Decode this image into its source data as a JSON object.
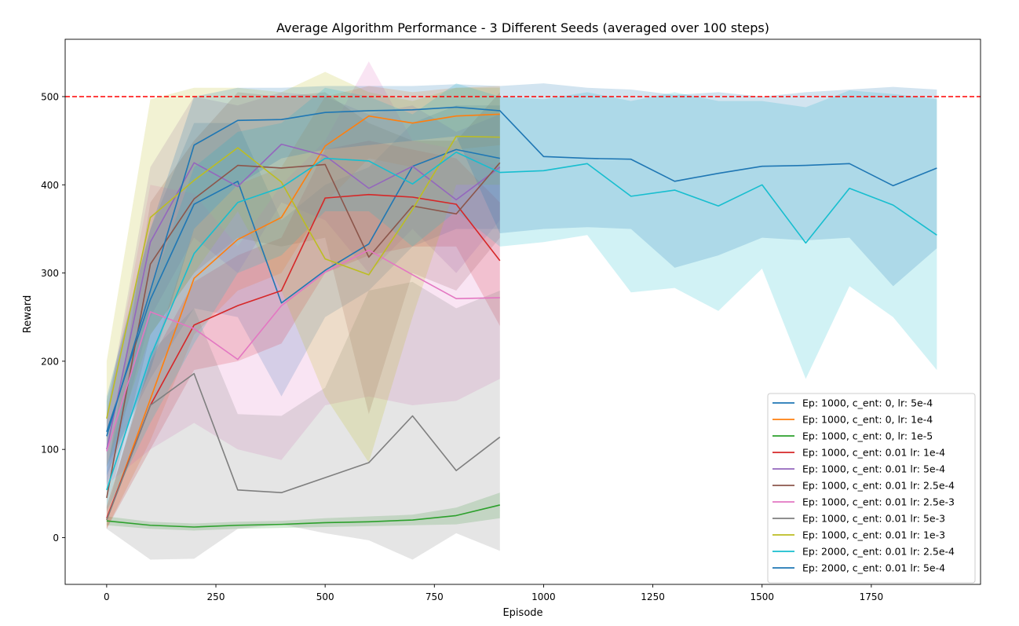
{
  "chart_data": {
    "type": "line",
    "title": "Average Algorithm Performance - 3 Different Seeds (averaged over 100 steps)",
    "xlabel": "Episode",
    "ylabel": "Reward",
    "xlim": [
      -95,
      2000
    ],
    "ylim": [
      -53,
      565
    ],
    "xticks": [
      0,
      250,
      500,
      750,
      1000,
      1250,
      1500,
      1750
    ],
    "yticks": [
      0,
      100,
      200,
      300,
      400,
      500
    ],
    "grid": false,
    "legend_position": "lower right",
    "reference_line": {
      "y": 500,
      "color": "#ff0000",
      "style": "dashed"
    },
    "series": [
      {
        "name": "Ep: 1000, c_ent: 0, lr: 5e-4",
        "color": "#1f77b4",
        "x": [
          0,
          100,
          200,
          300,
          400,
          500,
          600,
          700,
          800,
          900
        ],
        "y": [
          120,
          270,
          378,
          404,
          266,
          303,
          333,
          421,
          440,
          430
        ],
        "lower": [
          80,
          180,
          260,
          250,
          160,
          250,
          280,
          330,
          350,
          350
        ],
        "upper": [
          155,
          350,
          470,
          470,
          360,
          400,
          420,
          470,
          490,
          490
        ]
      },
      {
        "name": "Ep: 1000, c_ent: 0, lr: 1e-4",
        "color": "#ff7f0e",
        "x": [
          0,
          100,
          200,
          300,
          400,
          500,
          600,
          700,
          800,
          900
        ],
        "y": [
          20,
          157,
          294,
          338,
          363,
          444,
          478,
          470,
          478,
          480
        ],
        "lower": [
          10,
          110,
          230,
          280,
          300,
          380,
          430,
          420,
          440,
          445
        ],
        "upper": [
          35,
          200,
          350,
          400,
          420,
          500,
          512,
          505,
          510,
          512
        ]
      },
      {
        "name": "Ep: 1000, c_ent: 0, lr: 1e-5",
        "color": "#2ca02c",
        "x": [
          0,
          100,
          200,
          300,
          400,
          500,
          600,
          700,
          800,
          900
        ],
        "y": [
          19,
          14,
          12,
          14,
          15,
          17,
          18,
          20,
          25,
          37
        ],
        "lower": [
          14,
          10,
          8,
          10,
          11,
          12,
          13,
          14,
          15,
          22
        ],
        "upper": [
          24,
          18,
          16,
          18,
          19,
          22,
          24,
          26,
          34,
          51
        ]
      },
      {
        "name": "Ep: 1000, c_ent: 0.01 lr: 1e-4",
        "color": "#d62728",
        "x": [
          0,
          100,
          200,
          300,
          400,
          500,
          600,
          700,
          800,
          900
        ],
        "y": [
          22,
          150,
          241,
          263,
          280,
          385,
          389,
          386,
          378,
          314
        ],
        "lower": [
          10,
          100,
          190,
          200,
          220,
          300,
          320,
          330,
          330,
          240
        ],
        "upper": [
          35,
          200,
          290,
          320,
          340,
          440,
          450,
          440,
          430,
          380
        ]
      },
      {
        "name": "Ep: 1000, c_ent: 0.01 lr: 5e-4",
        "color": "#9467bd",
        "x": [
          0,
          100,
          200,
          300,
          400,
          500,
          600,
          700,
          800,
          900
        ],
        "y": [
          100,
          335,
          425,
          398,
          446,
          433,
          396,
          421,
          383,
          420
        ],
        "lower": [
          60,
          250,
          340,
          300,
          380,
          360,
          300,
          350,
          300,
          360
        ],
        "upper": [
          140,
          420,
          500,
          490,
          505,
          500,
          480,
          490,
          460,
          480
        ]
      },
      {
        "name": "Ep: 1000, c_ent: 0.01 lr: 2.5e-4",
        "color": "#8c564b",
        "x": [
          0,
          100,
          200,
          300,
          400,
          500,
          600,
          700,
          800,
          900
        ],
        "y": [
          45,
          310,
          384,
          422,
          419,
          423,
          318,
          376,
          367,
          425
        ],
        "lower": [
          30,
          230,
          300,
          340,
          330,
          340,
          140,
          300,
          280,
          340
        ],
        "upper": [
          70,
          380,
          450,
          505,
          500,
          505,
          470,
          450,
          450,
          505
        ]
      },
      {
        "name": "Ep: 1000, c_ent: 0.01 lr: 2.5e-3",
        "color": "#e377c2",
        "x": [
          0,
          100,
          200,
          300,
          400,
          500,
          600,
          700,
          800,
          900
        ],
        "y": [
          98,
          256,
          237,
          202,
          263,
          301,
          326,
          298,
          271,
          272
        ],
        "lower": [
          60,
          100,
          130,
          100,
          88,
          150,
          160,
          150,
          155,
          180
        ],
        "upper": [
          140,
          400,
          390,
          330,
          400,
          450,
          540,
          450,
          440,
          420
        ]
      },
      {
        "name": "Ep: 1000, c_ent: 0.01 lr: 5e-3",
        "color": "#7f7f7f",
        "x": [
          0,
          100,
          200,
          300,
          400,
          500,
          600,
          700,
          800,
          900
        ],
        "y": [
          20,
          150,
          186,
          54,
          51,
          68,
          85,
          138,
          76,
          114
        ],
        "lower": [
          10,
          -25,
          -24,
          10,
          15,
          5,
          -3,
          -25,
          5,
          -15
        ],
        "upper": [
          30,
          210,
          260,
          140,
          138,
          170,
          280,
          290,
          260,
          280
        ]
      },
      {
        "name": "Ep: 1000, c_ent: 0.01 lr: 1e-3",
        "color": "#bcbd22",
        "x": [
          0,
          100,
          200,
          300,
          400,
          500,
          600,
          700,
          800,
          900
        ],
        "y": [
          135,
          363,
          405,
          442,
          403,
          316,
          298,
          372,
          455,
          454
        ],
        "lower": [
          80,
          230,
          300,
          370,
          280,
          160,
          85,
          250,
          400,
          400
        ],
        "upper": [
          200,
          497,
          510,
          510,
          505,
          528,
          505,
          495,
          510,
          510
        ]
      },
      {
        "name": "Ep: 2000, c_ent: 0.01 lr: 2.5e-4",
        "color": "#17becf",
        "x": [
          0,
          100,
          200,
          300,
          400,
          500,
          600,
          700,
          800,
          900,
          1000,
          1100,
          1200,
          1300,
          1400,
          1500,
          1600,
          1700,
          1800,
          1900
        ],
        "y": [
          54,
          205,
          322,
          380,
          397,
          430,
          427,
          401,
          437,
          414,
          416,
          424,
          387,
          394,
          376,
          400,
          334,
          396,
          377,
          343
        ],
        "lower": [
          30,
          130,
          220,
          300,
          320,
          370,
          370,
          330,
          370,
          330,
          335,
          343,
          278,
          283,
          257,
          305,
          180,
          285,
          250,
          190
        ],
        "upper": [
          80,
          280,
          420,
          460,
          470,
          510,
          500,
          480,
          515,
          500,
          497,
          505,
          495,
          505,
          495,
          495,
          488,
          507,
          503,
          497
        ]
      },
      {
        "name": "Ep: 2000, c_ent: 0.01 lr: 5e-4",
        "color": "#1f77b4",
        "x": [
          0,
          100,
          200,
          300,
          400,
          500,
          600,
          700,
          800,
          900,
          1000,
          1100,
          1200,
          1300,
          1400,
          1500,
          1600,
          1700,
          1800,
          1900
        ],
        "y": [
          115,
          280,
          445,
          473,
          474,
          482,
          484,
          485,
          488,
          484,
          432,
          430,
          429,
          404,
          413,
          421,
          422,
          424,
          399,
          419
        ],
        "lower": [
          70,
          190,
          350,
          400,
          430,
          440,
          445,
          450,
          455,
          345,
          350,
          352,
          350,
          306,
          320,
          340,
          337,
          340,
          285,
          328
        ],
        "upper": [
          160,
          350,
          500,
          510,
          510,
          512,
          512,
          512,
          514,
          512,
          515,
          510,
          508,
          502,
          505,
          500,
          505,
          508,
          511,
          508
        ]
      }
    ]
  }
}
